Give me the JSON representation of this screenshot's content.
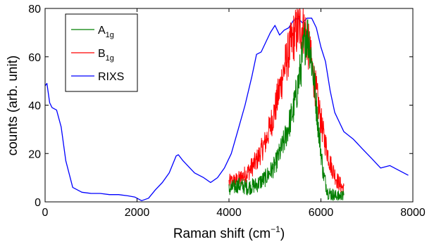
{
  "chart_data": {
    "type": "line",
    "xlabel": "Raman shift (cm",
    "xlabel_sup": "−1",
    "xlabel_tail": ")",
    "ylabel": "counts (arb. unit)",
    "xlim": [
      0,
      8000
    ],
    "ylim": [
      0,
      80
    ],
    "xticks": [
      "0",
      "2000",
      "4000",
      "6000",
      "8000"
    ],
    "yticks": [
      "0",
      "20",
      "40",
      "60",
      "80"
    ],
    "grid": false,
    "legend_position": "top-left",
    "series": [
      {
        "name": "A",
        "name_sub": "1g",
        "color": "#007f00",
        "noisy": true,
        "x": [
          4000,
          4200,
          4400,
          4600,
          4800,
          5000,
          5200,
          5400,
          5500,
          5600,
          5680,
          5750,
          5850,
          5950,
          6050,
          6150,
          6250,
          6350,
          6500
        ],
        "y": [
          5,
          7,
          6,
          7,
          10,
          15,
          25,
          38,
          48,
          60,
          70,
          66,
          50,
          30,
          12,
          4,
          3,
          2,
          2
        ]
      },
      {
        "name": "B",
        "name_sub": "1g",
        "color": "#ff0000",
        "noisy": true,
        "x": [
          4000,
          4200,
          4400,
          4600,
          4800,
          5000,
          5200,
          5400,
          5550,
          5650,
          5750,
          5900,
          6050,
          6200,
          6350,
          6500
        ],
        "y": [
          8,
          9,
          12,
          17,
          25,
          38,
          55,
          68,
          73,
          71,
          62,
          45,
          28,
          16,
          9,
          5
        ]
      },
      {
        "name": "RIXS",
        "color": "#0000ff",
        "noisy": false,
        "x": [
          0,
          40,
          100,
          150,
          250,
          350,
          450,
          600,
          800,
          1000,
          1200,
          1400,
          1600,
          1800,
          1950,
          2100,
          2250,
          2400,
          2550,
          2700,
          2850,
          2900,
          3000,
          3100,
          3250,
          3450,
          3600,
          3750,
          3900,
          4050,
          4200,
          4350,
          4500,
          4600,
          4700,
          4800,
          4900,
          5000,
          5100,
          5200,
          5300,
          5400,
          5500,
          5600,
          5700,
          5800,
          5900,
          6000,
          6100,
          6200,
          6300,
          6400,
          6500,
          6700,
          6900,
          7100,
          7300,
          7500,
          7700,
          7900
        ],
        "y": [
          48,
          49,
          41,
          39,
          38,
          31,
          17,
          6,
          4,
          3.5,
          3.5,
          3,
          3,
          2.5,
          2,
          0.5,
          1.5,
          5,
          8,
          12,
          19,
          19.5,
          17,
          15,
          12,
          10,
          8,
          10,
          14,
          20,
          30,
          40,
          52,
          61,
          62,
          66,
          70,
          73,
          69,
          71,
          72,
          75,
          76,
          74,
          76,
          76,
          72,
          64,
          58,
          46,
          37,
          33,
          29,
          26,
          22,
          18,
          14,
          15,
          13,
          11
        ]
      }
    ]
  }
}
